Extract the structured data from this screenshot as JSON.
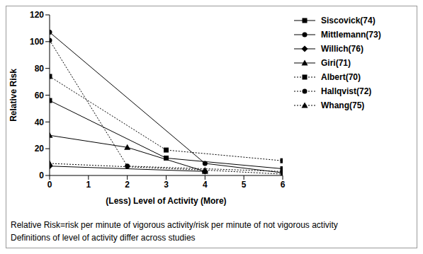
{
  "chart_data": {
    "type": "line",
    "xlabel": "(Less) Level of Activity (More)",
    "ylabel": "Relative Risk",
    "xlim": [
      0,
      6
    ],
    "xticks": [
      0,
      1,
      2,
      3,
      4,
      5,
      6
    ],
    "ylim": [
      0,
      120
    ],
    "yticks": [
      0,
      20,
      40,
      60,
      80,
      100,
      120
    ],
    "grid": false,
    "legend": "right",
    "annotations": [
      "Relative Risk=risk per minute of vigorous activity/risk per minute of not vigorous activity",
      "Definitions of level of activity differ across studies"
    ],
    "series": [
      {
        "name": "Siscovick(74)",
        "color": "#000000",
        "marker": "square",
        "line_style": "solid",
        "x": [
          0,
          3,
          6
        ],
        "values": [
          56,
          13,
          5
        ]
      },
      {
        "name": "Mittlemann(73)",
        "color": "#000000",
        "marker": "circle",
        "line_style": "solid",
        "x": [
          0,
          4,
          6
        ],
        "values": [
          107,
          9,
          2
        ]
      },
      {
        "name": "Willich(76)",
        "color": "#000000",
        "marker": "diamond",
        "line_style": "solid",
        "x": [
          0,
          4
        ],
        "values": [
          7,
          3
        ]
      },
      {
        "name": "Giri(71)",
        "color": "#000000",
        "marker": "triangle",
        "line_style": "solid",
        "x": [
          0,
          2,
          4
        ],
        "values": [
          30,
          21,
          3
        ]
      },
      {
        "name": "Albert(70)",
        "color": "#000000",
        "marker": "square",
        "line_style": "dotted",
        "x": [
          0,
          3,
          6
        ],
        "values": [
          74,
          19,
          11
        ]
      },
      {
        "name": "Hallqvist(72)",
        "color": "#000000",
        "marker": "circle",
        "line_style": "dotted",
        "x": [
          0,
          2,
          6
        ],
        "values": [
          101,
          7,
          3
        ]
      },
      {
        "name": "Whang(75)",
        "color": "#000000",
        "marker": "triangle",
        "line_style": "dotted",
        "x": [
          0,
          4,
          6
        ],
        "values": [
          9,
          4,
          1
        ]
      }
    ]
  }
}
